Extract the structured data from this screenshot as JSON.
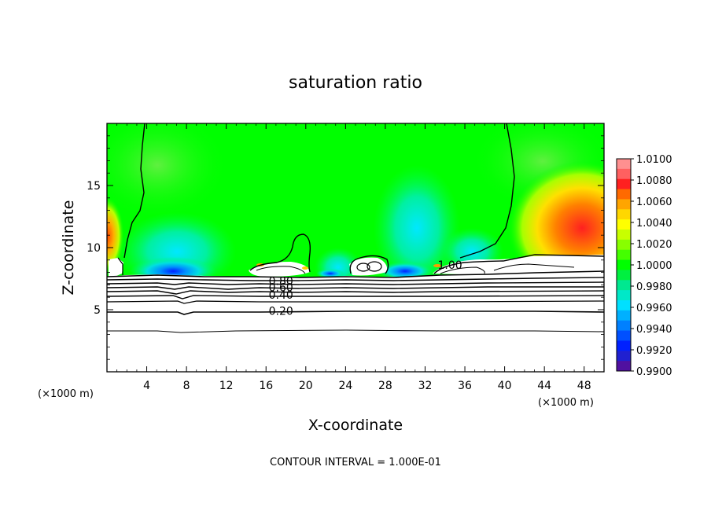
{
  "chart_data": {
    "type": "contour",
    "title": "saturation ratio",
    "xlabel": "X-coordinate",
    "ylabel": "Z-coordinate",
    "x_unit": "(×1000 m)",
    "z_unit": "(×1000 m)",
    "xlim": [
      0,
      50
    ],
    "ylim": [
      0,
      20
    ],
    "x_ticks": [
      4,
      8,
      12,
      16,
      20,
      24,
      28,
      32,
      36,
      40,
      44,
      48
    ],
    "y_ticks": [
      5,
      10,
      15
    ],
    "contour_labels": [
      {
        "text": "1.00",
        "x": 34.5,
        "z": 8.6
      },
      {
        "text": "0.80",
        "x": 17.5,
        "z": 7.3
      },
      {
        "text": "0.60",
        "x": 17.5,
        "z": 6.8
      },
      {
        "text": "0.40",
        "x": 17.5,
        "z": 6.2
      },
      {
        "text": "0.20",
        "x": 17.5,
        "z": 4.9
      }
    ],
    "colorbar": {
      "levels": [
        "1.0100",
        "1.0080",
        "1.0060",
        "1.0040",
        "1.0020",
        "1.0000",
        "0.9980",
        "0.9960",
        "0.9940",
        "0.9920",
        "0.9900"
      ],
      "colors": [
        "#ff9090",
        "#ff6060",
        "#ff2020",
        "#ff6a00",
        "#ffa500",
        "#ffd700",
        "#ffff00",
        "#c8ff00",
        "#88ff00",
        "#44ff00",
        "#00ff00",
        "#00f040",
        "#00e890",
        "#00e8c8",
        "#00e0ff",
        "#00b0ff",
        "#0080ff",
        "#0050ff",
        "#0020ff",
        "#2020d0",
        "#5010a0"
      ]
    },
    "footer": "CONTOUR INTERVAL = 1.000E-01"
  }
}
